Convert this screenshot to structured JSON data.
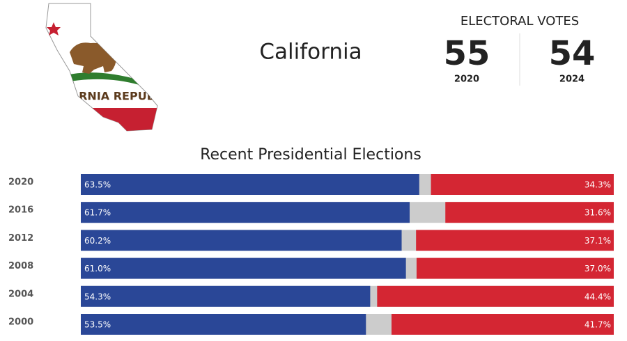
{
  "header": {
    "state": "California",
    "electoral_title": "ELECTORAL VOTES",
    "electoral_votes": [
      {
        "value": 55,
        "label": "2020"
      },
      {
        "value": 54,
        "label": "2024"
      }
    ]
  },
  "flag": {
    "text": "RNIA REPUB"
  },
  "chart_data": {
    "type": "bar",
    "title": "Recent Presidential Elections",
    "categories": [
      "2020",
      "2016",
      "2012",
      "2008",
      "2004",
      "2000"
    ],
    "xlim": [
      0,
      100
    ],
    "series": [
      {
        "color": "#2a4797",
        "values": [
          63.5,
          61.7,
          60.2,
          61.0,
          54.3,
          53.5
        ],
        "value_labels": [
          "63.5%",
          "61.7%",
          "60.2%",
          "61.0%",
          "54.3%",
          "53.5%"
        ]
      },
      {
        "color": "#d42633",
        "values": [
          34.3,
          31.6,
          37.1,
          37.0,
          44.4,
          41.7
        ],
        "value_labels": [
          "34.3%",
          "31.6%",
          "37.1%",
          "37.0%",
          "44.4%",
          "41.7%"
        ]
      }
    ]
  }
}
